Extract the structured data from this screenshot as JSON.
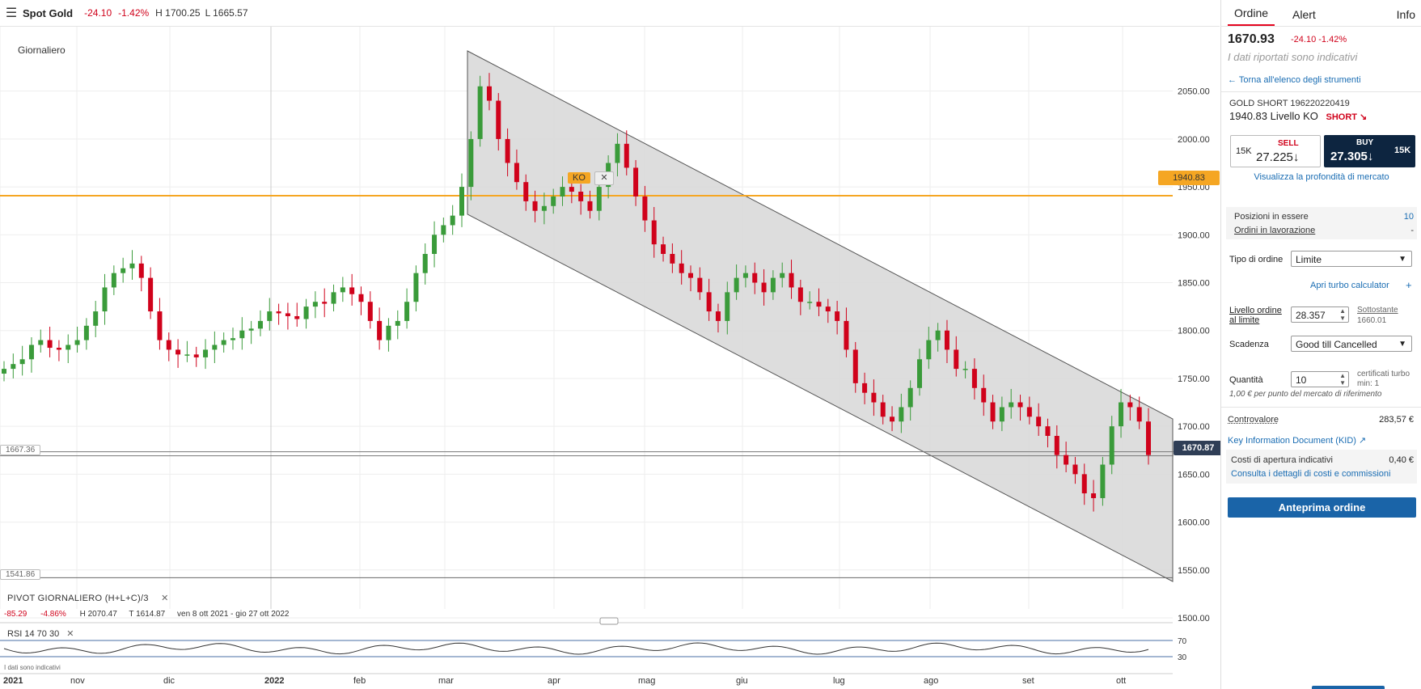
{
  "topbar": {
    "symbol": "Spot Gold",
    "change": "-24.10",
    "change_pct": "-1.42%",
    "high": "H 1700.25",
    "low": "L 1665.57"
  },
  "chart": {
    "timeframe": "Giornaliero",
    "ko_chip": "KO",
    "ko_close": "✕",
    "ko_level_tag": "1940.83",
    "current_price_tag": "1670.87",
    "left_tag_upper": "1667.36",
    "left_tag_lower": "1541.86",
    "pivot_title": "PIVOT GIORNALIERO (H+L+C)/3",
    "pivot_close": "✕",
    "pivot_change": "-85.29",
    "pivot_change_pct": "-4.86%",
    "pivot_high": "H 2070.47",
    "pivot_low": "T 1614.87",
    "pivot_range": "ven 8 ott 2021 - gio 27 ott 2022",
    "rsi_label": "RSI  14  70  30",
    "rsi_close": "✕",
    "indicative": "I dati sono indicativi",
    "rsi_ticks": [
      "70",
      "30"
    ],
    "x_labels": [
      {
        "t": "2021",
        "bold": true
      },
      {
        "t": "nov",
        "bold": false
      },
      {
        "t": "dic",
        "bold": false
      },
      {
        "t": "2022",
        "bold": true
      },
      {
        "t": "feb",
        "bold": false
      },
      {
        "t": "mar",
        "bold": false
      },
      {
        "t": "apr",
        "bold": false
      },
      {
        "t": "mag",
        "bold": false
      },
      {
        "t": "giu",
        "bold": false
      },
      {
        "t": "lug",
        "bold": false
      },
      {
        "t": "ago",
        "bold": false
      },
      {
        "t": "set",
        "bold": false
      },
      {
        "t": "ott",
        "bold": false
      }
    ],
    "y_labels": [
      "2050.00",
      "2000.00",
      "1950.00",
      "1900.00",
      "1850.00",
      "1800.00",
      "1750.00",
      "1700.00",
      "1650.00",
      "1600.00",
      "1550.00",
      "1500.00"
    ],
    "colors": {
      "up": "#3a9b3a",
      "down": "#d0021b",
      "ko_line": "#f5a623",
      "channel": "#d9d9d9"
    }
  },
  "chart_data": {
    "type": "candlestick",
    "title": "Spot Gold",
    "ylim": [
      1500,
      2070
    ],
    "x_range": [
      "2021-10-08",
      "2022-10-27"
    ],
    "ko_level": 1940.83,
    "current_price": 1670.87,
    "closes": [
      1760,
      1765,
      1770,
      1785,
      1790,
      1782,
      1780,
      1785,
      1790,
      1805,
      1820,
      1845,
      1860,
      1865,
      1870,
      1855,
      1820,
      1790,
      1780,
      1775,
      1775,
      1772,
      1780,
      1785,
      1790,
      1792,
      1800,
      1802,
      1810,
      1820,
      1818,
      1815,
      1812,
      1825,
      1830,
      1828,
      1840,
      1845,
      1838,
      1830,
      1810,
      1790,
      1805,
      1810,
      1830,
      1860,
      1880,
      1900,
      1910,
      1920,
      1950,
      2000,
      2055,
      2040,
      2000,
      1975,
      1955,
      1935,
      1925,
      1930,
      1940,
      1950,
      1945,
      1935,
      1925,
      1950,
      1975,
      1995,
      1970,
      1940,
      1915,
      1890,
      1880,
      1870,
      1860,
      1855,
      1840,
      1820,
      1810,
      1840,
      1855,
      1860,
      1850,
      1840,
      1855,
      1860,
      1845,
      1830,
      1830,
      1825,
      1820,
      1810,
      1780,
      1745,
      1735,
      1725,
      1710,
      1705,
      1720,
      1740,
      1770,
      1790,
      1800,
      1780,
      1760,
      1760,
      1740,
      1725,
      1705,
      1720,
      1725,
      1720,
      1710,
      1700,
      1690,
      1670,
      1660,
      1650,
      1630,
      1625,
      1660,
      1700,
      1725,
      1720,
      1705,
      1670
    ],
    "rsi": {
      "upper": 70,
      "lower": 30
    }
  },
  "panel": {
    "tabs": {
      "order": "Ordine",
      "alert": "Alert",
      "info": "Info"
    },
    "price": "1670.93",
    "change": "-24.10 -1.42%",
    "indicative": "I dati riportati sono indicativi",
    "back_link": "Torna all'elenco degli strumenti",
    "instrument_name": "GOLD SHORT 196220220419",
    "instrument_level": "1940.83 Livello KO",
    "direction": "SHORT ↘",
    "sell": {
      "qty": "15K",
      "label": "SELL",
      "value": "27.225↓"
    },
    "buy": {
      "qty": "15K",
      "label": "BUY",
      "value": "27.305↓"
    },
    "depth_link": "Visualizza la profondità di mercato",
    "positions_label": "Posizioni in essere",
    "positions_value": "10",
    "orders_label": "Ordini in lavorazione",
    "orders_value": "-",
    "order_type_label": "Tipo di ordine",
    "order_type_value": "Limite",
    "turbo_link": "Apri turbo calculator",
    "turbo_plus": "+",
    "limit_label": "Livello ordine al limite",
    "limit_value": "28.357",
    "underlying_label": "Sottostante",
    "underlying_value": "1660.01",
    "expiry_label": "Scadenza",
    "expiry_value": "Good till Cancelled",
    "qty_label": "Quantità",
    "qty_value": "10",
    "qty_note": "certificati turbo min: 1",
    "point_note": "1,00 € per punto del mercato di riferimento",
    "countervalue_label": "Controvalore",
    "countervalue_value": "283,57 €",
    "kid_link": "Key Information Document (KID)",
    "costs_label": "Costi di apertura indicativi",
    "costs_value": "0,40 €",
    "costs_link": "Consulta i dettagli di costi e commissioni",
    "preview_button": "Anteprima ordine"
  }
}
